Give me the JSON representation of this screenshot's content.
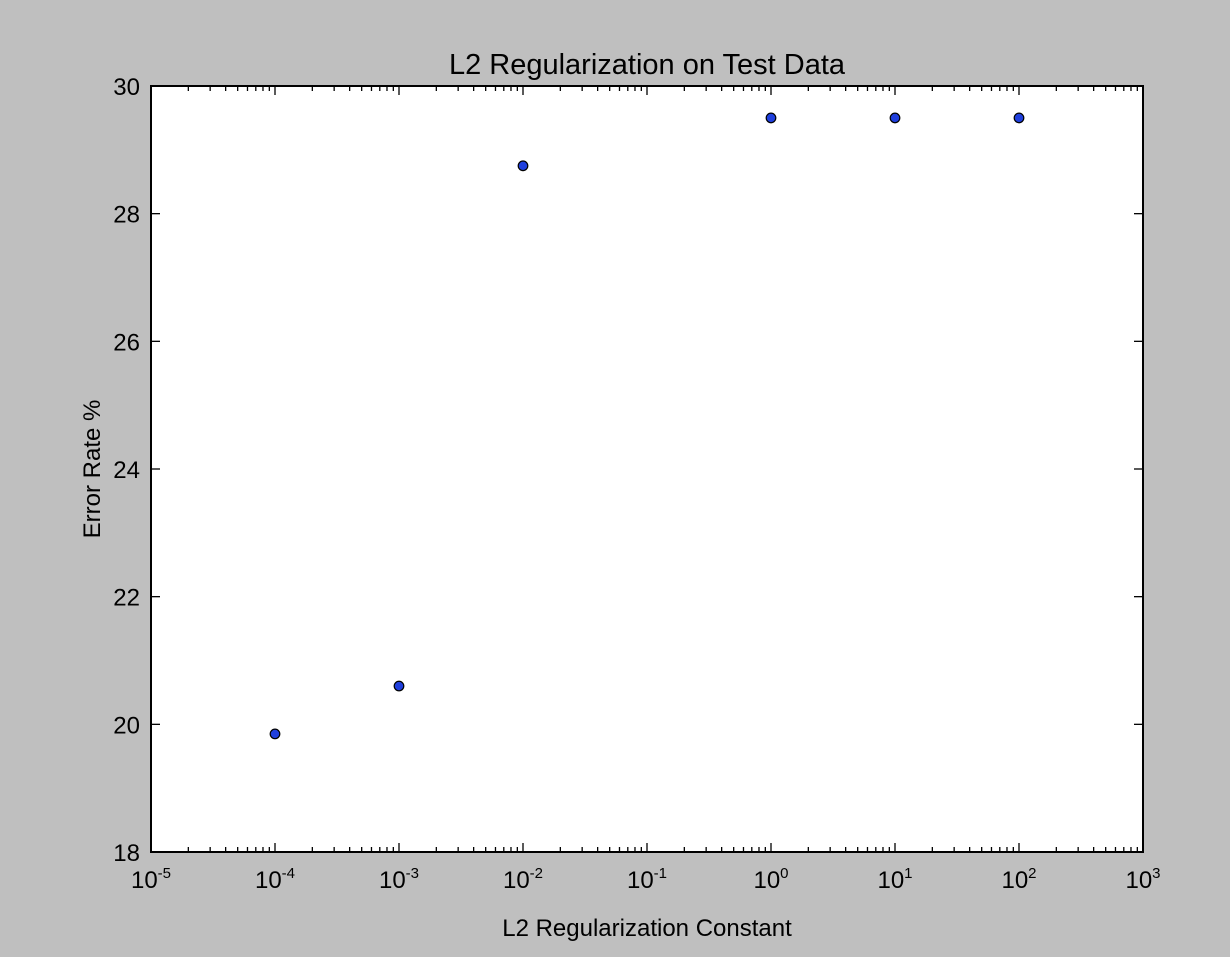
{
  "chart_data": {
    "type": "scatter",
    "title": "L2 Regularization on Test Data",
    "xlabel": "L2 Regularization Constant",
    "ylabel": "Error Rate %",
    "x_scale": "log",
    "xlim": [
      1e-05,
      1000
    ],
    "ylim": [
      18,
      30
    ],
    "x_ticks": [
      {
        "base": "10",
        "exp": "-5",
        "value": 1e-05
      },
      {
        "base": "10",
        "exp": "-4",
        "value": 0.0001
      },
      {
        "base": "10",
        "exp": "-3",
        "value": 0.001
      },
      {
        "base": "10",
        "exp": "-2",
        "value": 0.01
      },
      {
        "base": "10",
        "exp": "-1",
        "value": 0.1
      },
      {
        "base": "10",
        "exp": "0",
        "value": 1
      },
      {
        "base": "10",
        "exp": "1",
        "value": 10
      },
      {
        "base": "10",
        "exp": "2",
        "value": 100
      },
      {
        "base": "10",
        "exp": "3",
        "value": 1000
      }
    ],
    "y_ticks": [
      "18",
      "20",
      "22",
      "24",
      "26",
      "28",
      "30"
    ],
    "grid": false,
    "legend": "none",
    "series": [
      {
        "color": "#1f3fdd",
        "x": [
          0.0001,
          0.001,
          0.01,
          1,
          10,
          100
        ],
        "y": [
          19.85,
          20.6,
          28.75,
          29.5,
          29.5,
          29.5
        ]
      }
    ]
  }
}
